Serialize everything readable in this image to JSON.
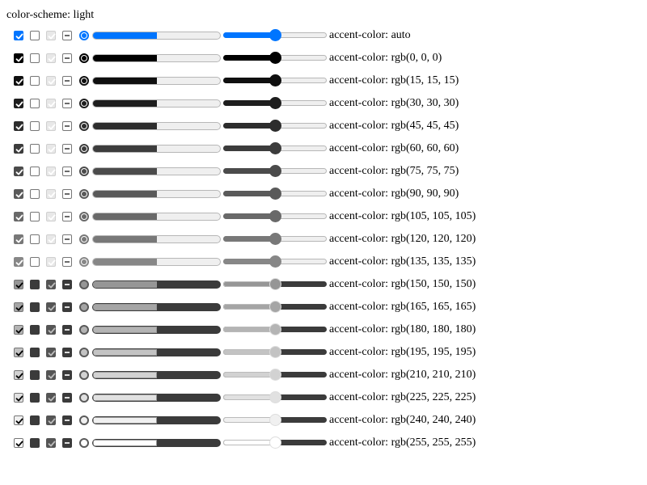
{
  "color_scheme_label": "color-scheme: light",
  "controls": {
    "checkbox_checked": true,
    "checkbox_unchecked": false,
    "checkbox_disabled_checked": true,
    "checkbox_indeterminate": true,
    "radio_selected": true,
    "progress_value": 0.5,
    "range_value": 0.5
  },
  "rows": [
    {
      "label": "accent-color: auto",
      "accent": "#0075ff"
    },
    {
      "label": "accent-color: rgb(0, 0, 0)",
      "accent": "#000000"
    },
    {
      "label": "accent-color: rgb(15, 15, 15)",
      "accent": "#0f0f0f"
    },
    {
      "label": "accent-color: rgb(30, 30, 30)",
      "accent": "#1e1e1e"
    },
    {
      "label": "accent-color: rgb(45, 45, 45)",
      "accent": "#2d2d2d"
    },
    {
      "label": "accent-color: rgb(60, 60, 60)",
      "accent": "#3c3c3c"
    },
    {
      "label": "accent-color: rgb(75, 75, 75)",
      "accent": "#4b4b4b"
    },
    {
      "label": "accent-color: rgb(90, 90, 90)",
      "accent": "#5a5a5a"
    },
    {
      "label": "accent-color: rgb(105, 105, 105)",
      "accent": "#696969"
    },
    {
      "label": "accent-color: rgb(120, 120, 120)",
      "accent": "#787878"
    },
    {
      "label": "accent-color: rgb(135, 135, 135)",
      "accent": "#878787"
    },
    {
      "label": "accent-color: rgb(150, 150, 150)",
      "accent": "#969696"
    },
    {
      "label": "accent-color: rgb(165, 165, 165)",
      "accent": "#a5a5a5"
    },
    {
      "label": "accent-color: rgb(180, 180, 180)",
      "accent": "#b4b4b4"
    },
    {
      "label": "accent-color: rgb(195, 195, 195)",
      "accent": "#c3c3c3"
    },
    {
      "label": "accent-color: rgb(210, 210, 210)",
      "accent": "#d2d2d2"
    },
    {
      "label": "accent-color: rgb(225, 225, 225)",
      "accent": "#e1e1e1"
    },
    {
      "label": "accent-color: rgb(240, 240, 240)",
      "accent": "#f0f0f0"
    },
    {
      "label": "accent-color: rgb(255, 255, 255)",
      "accent": "#ffffff"
    }
  ]
}
